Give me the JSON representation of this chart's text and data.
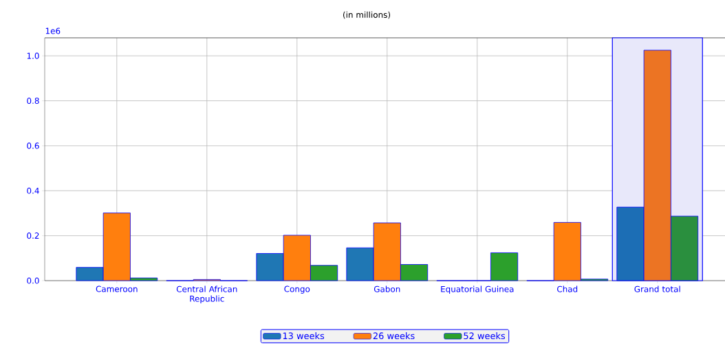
{
  "chart_data": {
    "type": "bar",
    "subtitle": "(in millions)",
    "categories": [
      "Cameroon",
      "Central African Republic",
      "Congo",
      "Gabon",
      "Equatorial Guinea",
      "Chad",
      "Grand total"
    ],
    "series": [
      {
        "name": "13 weeks",
        "color": "#1f77b4",
        "colors": [
          "#1f77b4",
          "#1f77b4",
          "#1f77b4",
          "#1f77b4",
          "#1f77b4",
          "#1f77b4",
          "#1c6eb5"
        ],
        "values": [
          0.059,
          0,
          0.121,
          0.146,
          0,
          0,
          0.327
        ]
      },
      {
        "name": "26 weeks",
        "color": "#ff7f0e",
        "colors": [
          "#ff7f0e",
          "#ff7f0e",
          "#ff7f0e",
          "#ff7f0e",
          "#ff7f0e",
          "#ff7f0e",
          "#ec7423"
        ],
        "values": [
          0.301,
          0.005,
          0.202,
          0.257,
          0,
          0.259,
          1.025
        ]
      },
      {
        "name": "52 weeks",
        "color": "#2ca02c",
        "colors": [
          "#2ca02c",
          "#2ca02c",
          "#2ca02c",
          "#2ca02c",
          "#2ca02c",
          "#2ca02c",
          "#2a8f3e"
        ],
        "values": [
          0.012,
          0,
          0.068,
          0.072,
          0.124,
          0.007,
          0.287
        ]
      }
    ],
    "ylim": [
      0,
      1.08
    ],
    "yticks": [
      {
        "value": 0,
        "label": "0.0"
      },
      0.2,
      0.4,
      0.6,
      0.8,
      {
        "value": 1,
        "label": "1.0"
      }
    ],
    "annotations": [
      "1e6"
    ],
    "bands": [
      {
        "axis": "x",
        "from": "Grand total",
        "to": "Grand total",
        "color": "#e8e8fa"
      }
    ],
    "grid": true,
    "legend": "bottom"
  }
}
